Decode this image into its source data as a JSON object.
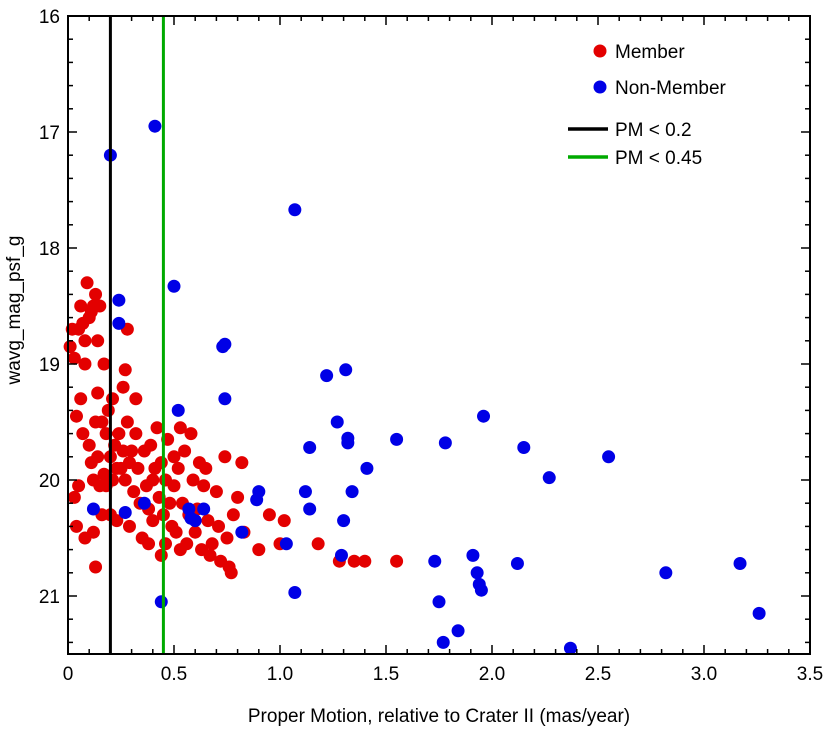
{
  "chart_data": {
    "type": "scatter",
    "title": "",
    "xlabel": "Proper Motion, relative to Crater II (mas/year)",
    "ylabel": "wavg_mag_psf_g",
    "xlim": [
      0,
      3.5
    ],
    "ylim": [
      16,
      21.5
    ],
    "y_inverted": true,
    "grid": false,
    "legend_position": "top-right",
    "x_ticks": [
      0,
      0.5,
      1.0,
      1.5,
      2.0,
      2.5,
      3.0,
      3.5
    ],
    "x_tick_labels": [
      "0",
      "0.5",
      "1.0",
      "1.5",
      "2.0",
      "2.5",
      "3.0",
      "3.5"
    ],
    "y_ticks": [
      16,
      17,
      18,
      19,
      20,
      21
    ],
    "y_tick_labels": [
      "16",
      "17",
      "18",
      "19",
      "20",
      "21"
    ],
    "series": [
      {
        "name": "Member",
        "color": "#e30000",
        "points": [
          [
            0.01,
            18.85
          ],
          [
            0.02,
            18.7
          ],
          [
            0.03,
            18.95
          ],
          [
            0.04,
            19.45
          ],
          [
            0.05,
            18.7
          ],
          [
            0.06,
            18.5
          ],
          [
            0.07,
            18.65
          ],
          [
            0.08,
            18.8
          ],
          [
            0.09,
            18.3
          ],
          [
            0.1,
            18.6
          ],
          [
            0.11,
            18.55
          ],
          [
            0.12,
            18.5
          ],
          [
            0.13,
            18.4
          ],
          [
            0.14,
            18.8
          ],
          [
            0.15,
            18.5
          ],
          [
            0.03,
            20.15
          ],
          [
            0.04,
            20.4
          ],
          [
            0.05,
            20.05
          ],
          [
            0.06,
            19.3
          ],
          [
            0.07,
            19.6
          ],
          [
            0.08,
            19.0
          ],
          [
            0.1,
            19.7
          ],
          [
            0.11,
            19.85
          ],
          [
            0.12,
            20.0
          ],
          [
            0.13,
            19.5
          ],
          [
            0.14,
            19.8
          ],
          [
            0.15,
            20.05
          ],
          [
            0.12,
            20.45
          ],
          [
            0.13,
            20.75
          ],
          [
            0.14,
            19.25
          ],
          [
            0.16,
            20.3
          ],
          [
            0.16,
            19.5
          ],
          [
            0.17,
            19.95
          ],
          [
            0.17,
            19.0
          ],
          [
            0.18,
            19.6
          ],
          [
            0.18,
            20.05
          ],
          [
            0.19,
            19.4
          ],
          [
            0.2,
            19.8
          ],
          [
            0.21,
            20.0
          ],
          [
            0.21,
            19.3
          ],
          [
            0.22,
            19.7
          ],
          [
            0.23,
            19.9
          ],
          [
            0.23,
            20.35
          ],
          [
            0.24,
            19.6
          ],
          [
            0.25,
            19.9
          ],
          [
            0.26,
            19.2
          ],
          [
            0.26,
            19.75
          ],
          [
            0.27,
            19.05
          ],
          [
            0.27,
            20.0
          ],
          [
            0.28,
            19.5
          ],
          [
            0.29,
            19.85
          ],
          [
            0.29,
            20.4
          ],
          [
            0.3,
            19.75
          ],
          [
            0.31,
            20.1
          ],
          [
            0.32,
            19.6
          ],
          [
            0.32,
            19.3
          ],
          [
            0.33,
            19.9
          ],
          [
            0.34,
            20.2
          ],
          [
            0.35,
            20.5
          ],
          [
            0.36,
            19.75
          ],
          [
            0.37,
            20.05
          ],
          [
            0.38,
            20.25
          ],
          [
            0.38,
            20.55
          ],
          [
            0.39,
            19.7
          ],
          [
            0.4,
            20.0
          ],
          [
            0.4,
            20.35
          ],
          [
            0.41,
            19.9
          ],
          [
            0.42,
            19.55
          ],
          [
            0.43,
            20.15
          ],
          [
            0.44,
            20.65
          ],
          [
            0.44,
            19.85
          ],
          [
            0.45,
            20.3
          ],
          [
            0.46,
            20.0
          ],
          [
            0.46,
            20.55
          ],
          [
            0.47,
            19.65
          ],
          [
            0.48,
            20.2
          ],
          [
            0.49,
            20.4
          ],
          [
            0.5,
            19.8
          ],
          [
            0.5,
            20.05
          ],
          [
            0.51,
            20.45
          ],
          [
            0.52,
            19.9
          ],
          [
            0.53,
            19.55
          ],
          [
            0.53,
            20.6
          ],
          [
            0.54,
            20.2
          ],
          [
            0.55,
            19.75
          ],
          [
            0.56,
            20.55
          ],
          [
            0.57,
            20.3
          ],
          [
            0.58,
            19.6
          ],
          [
            0.59,
            20.0
          ],
          [
            0.6,
            20.45
          ],
          [
            0.61,
            20.25
          ],
          [
            0.62,
            19.85
          ],
          [
            0.63,
            20.6
          ],
          [
            0.64,
            20.05
          ],
          [
            0.65,
            19.9
          ],
          [
            0.66,
            20.35
          ],
          [
            0.67,
            20.65
          ],
          [
            0.68,
            20.55
          ],
          [
            0.7,
            20.1
          ],
          [
            0.71,
            20.4
          ],
          [
            0.72,
            20.7
          ],
          [
            0.74,
            19.8
          ],
          [
            0.75,
            20.5
          ],
          [
            0.76,
            20.75
          ],
          [
            0.77,
            20.8
          ],
          [
            0.78,
            20.3
          ],
          [
            0.8,
            20.15
          ],
          [
            0.82,
            19.85
          ],
          [
            0.83,
            20.45
          ],
          [
            0.9,
            20.6
          ],
          [
            0.95,
            20.3
          ],
          [
            1.0,
            20.55
          ],
          [
            1.02,
            20.35
          ],
          [
            1.18,
            20.55
          ],
          [
            1.28,
            20.7
          ],
          [
            1.35,
            20.7
          ],
          [
            1.4,
            20.7
          ],
          [
            1.55,
            20.7
          ],
          [
            0.28,
            18.7
          ],
          [
            0.2,
            20.3
          ],
          [
            0.08,
            20.5
          ]
        ]
      },
      {
        "name": "Non-Member",
        "color": "#0000e6",
        "points": [
          [
            0.2,
            17.2
          ],
          [
            0.41,
            16.95
          ],
          [
            1.07,
            17.67
          ],
          [
            0.24,
            18.45
          ],
          [
            0.5,
            18.33
          ],
          [
            0.24,
            18.65
          ],
          [
            0.73,
            18.85
          ],
          [
            0.74,
            18.83
          ],
          [
            0.12,
            20.25
          ],
          [
            0.74,
            19.3
          ],
          [
            0.52,
            19.4
          ],
          [
            1.31,
            19.05
          ],
          [
            1.22,
            19.1
          ],
          [
            1.27,
            19.5
          ],
          [
            1.14,
            19.72
          ],
          [
            1.32,
            19.68
          ],
          [
            1.32,
            19.64
          ],
          [
            1.55,
            19.65
          ],
          [
            1.78,
            19.68
          ],
          [
            1.96,
            19.45
          ],
          [
            2.15,
            19.72
          ],
          [
            2.55,
            19.8
          ],
          [
            1.41,
            19.9
          ],
          [
            2.27,
            19.98
          ],
          [
            0.9,
            20.1
          ],
          [
            1.12,
            20.1
          ],
          [
            1.34,
            20.1
          ],
          [
            0.89,
            20.17
          ],
          [
            0.64,
            20.25
          ],
          [
            0.57,
            20.25
          ],
          [
            0.58,
            20.33
          ],
          [
            1.14,
            20.25
          ],
          [
            0.6,
            20.35
          ],
          [
            0.82,
            20.45
          ],
          [
            1.3,
            20.35
          ],
          [
            1.03,
            20.55
          ],
          [
            1.29,
            20.65
          ],
          [
            1.73,
            20.7
          ],
          [
            1.91,
            20.65
          ],
          [
            2.12,
            20.72
          ],
          [
            1.93,
            20.8
          ],
          [
            2.82,
            20.8
          ],
          [
            3.17,
            20.72
          ],
          [
            1.94,
            20.9
          ],
          [
            1.95,
            20.95
          ],
          [
            1.07,
            20.97
          ],
          [
            1.75,
            21.05
          ],
          [
            3.26,
            21.15
          ],
          [
            0.44,
            21.05
          ],
          [
            1.84,
            21.3
          ],
          [
            1.77,
            21.4
          ],
          [
            2.37,
            21.45
          ],
          [
            0.36,
            20.2
          ],
          [
            0.27,
            20.28
          ]
        ]
      }
    ],
    "reference_lines": [
      {
        "name": "PM < 0.2",
        "x": 0.2,
        "color": "#000000"
      },
      {
        "name": "PM < 0.45",
        "x": 0.45,
        "color": "#00aa00"
      }
    ],
    "legend": [
      {
        "label": "Member",
        "kind": "marker",
        "color": "#e30000"
      },
      {
        "label": "Non-Member",
        "kind": "marker",
        "color": "#0000e6"
      },
      {
        "label": "PM < 0.2",
        "kind": "line",
        "color": "#000000"
      },
      {
        "label": "PM < 0.45",
        "kind": "line",
        "color": "#00aa00"
      }
    ]
  }
}
